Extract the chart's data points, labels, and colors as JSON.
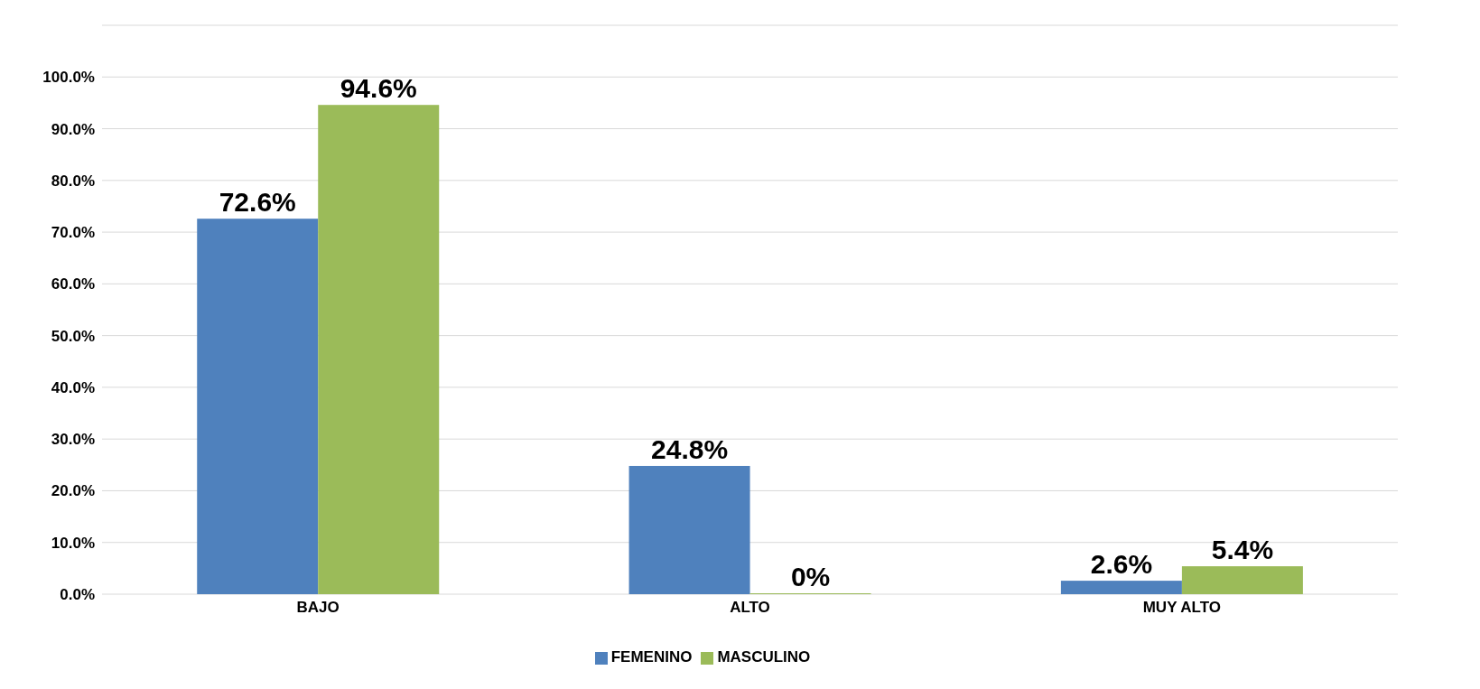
{
  "chart_data": {
    "type": "bar",
    "categories": [
      "BAJO",
      "ALTO",
      "MUY ALTO"
    ],
    "series": [
      {
        "name": "FEMENINO",
        "color": "#4f81bd",
        "values": [
          72.6,
          24.8,
          2.6
        ],
        "value_labels": [
          "72.6%",
          "24.8%",
          "2.6%"
        ]
      },
      {
        "name": "MASCULINO",
        "color": "#9bbb59",
        "values": [
          94.6,
          0,
          5.4
        ],
        "value_labels": [
          "94.6%",
          "0%",
          "5.4%"
        ]
      }
    ],
    "ylim": [
      0,
      110
    ],
    "yticks": [
      {
        "value": 0,
        "label": "0.0%"
      },
      {
        "value": 10,
        "label": "10.0%"
      },
      {
        "value": 20,
        "label": "20.0%"
      },
      {
        "value": 30,
        "label": "30.0%"
      },
      {
        "value": 40,
        "label": "40.0%"
      },
      {
        "value": 50,
        "label": "50.0%"
      },
      {
        "value": 60,
        "label": "60.0%"
      },
      {
        "value": 70,
        "label": "70.0%"
      },
      {
        "value": 80,
        "label": "80.0%"
      },
      {
        "value": 90,
        "label": "90.0%"
      },
      {
        "value": 100,
        "label": "100.0%"
      },
      {
        "value": 110,
        "label": null
      }
    ],
    "grid": "y",
    "legend": "bottom"
  }
}
